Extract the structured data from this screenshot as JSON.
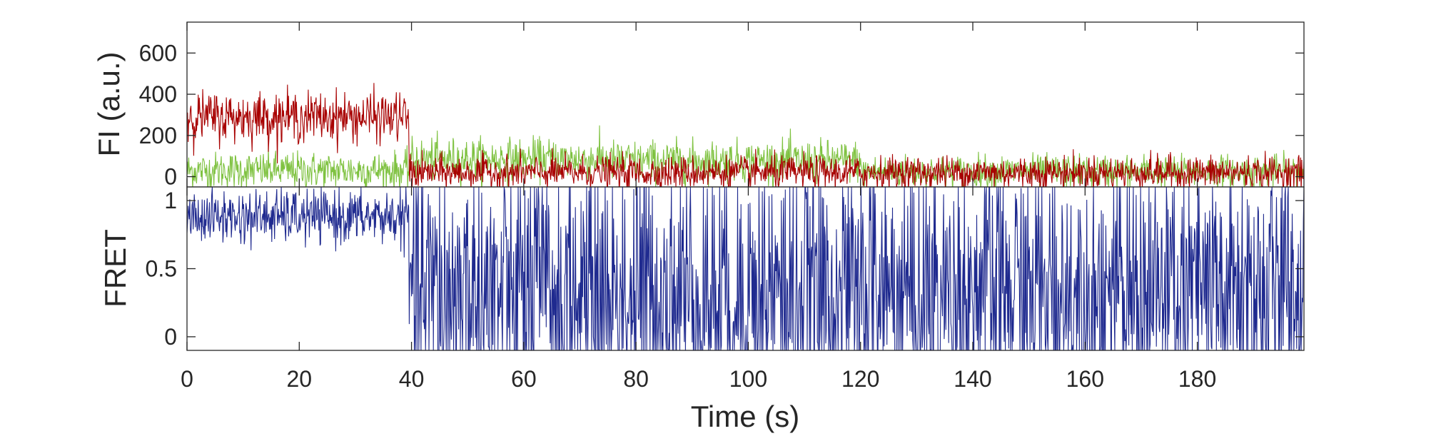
{
  "chart_data": [
    {
      "type": "line",
      "panel": "top",
      "title": "",
      "xlabel": "",
      "ylabel": "FI (a.u.)",
      "xlim": [
        0,
        199
      ],
      "ylim": [
        -50,
        750
      ],
      "yticks": [
        0,
        200,
        400,
        600
      ],
      "ytick_labels": [
        "0",
        "200",
        "400",
        "600"
      ],
      "grid": false,
      "colors": {
        "donor": "#7fc241",
        "acceptor": "#a80000"
      },
      "sample_interval_s": 0.1,
      "series": [
        {
          "role": "donor",
          "color": "#7fc241",
          "segments": [
            {
              "x_start": 0,
              "x_end": 39.6,
              "mean": 30,
              "noise_sd": 45
            },
            {
              "x_start": 39.6,
              "x_end": 75,
              "mean": 85,
              "noise_sd": 50
            },
            {
              "x_start": 75,
              "x_end": 120,
              "mean": 75,
              "noise_sd": 50
            },
            {
              "x_start": 120,
              "x_end": 199,
              "mean": 25,
              "noise_sd": 40
            }
          ]
        },
        {
          "role": "acceptor",
          "color": "#a80000",
          "segments": [
            {
              "x_start": 0,
              "x_end": 39.6,
              "mean": 290,
              "noise_sd": 60
            },
            {
              "x_start": 39.6,
              "x_end": 199,
              "mean": 20,
              "noise_sd": 40
            }
          ]
        }
      ]
    },
    {
      "type": "line",
      "panel": "bottom",
      "title": "",
      "xlabel": "Time (s)",
      "ylabel": "FRET",
      "xlim": [
        0,
        199
      ],
      "ylim": [
        -0.1,
        1.1
      ],
      "yticks": [
        0,
        0.5,
        1
      ],
      "ytick_labels": [
        "0",
        "0.5",
        "1"
      ],
      "xticks": [
        0,
        20,
        40,
        60,
        80,
        100,
        120,
        140,
        160,
        180
      ],
      "xtick_labels": [
        "0",
        "20",
        "40",
        "60",
        "80",
        "100",
        "120",
        "140",
        "160",
        "180"
      ],
      "grid": false,
      "colors": {
        "fret": "#1f2a8f"
      },
      "sample_interval_s": 0.1,
      "series": [
        {
          "role": "fret",
          "color": "#1f2a8f",
          "segments": [
            {
              "x_start": 0,
              "x_end": 39.6,
              "mean": 0.88,
              "noise_sd": 0.1,
              "clip": [
                0.55,
                1.1
              ]
            },
            {
              "x_start": 39.6,
              "x_end": 199,
              "mean": 0.3,
              "noise_sd": 0.55,
              "clip": [
                -0.1,
                1.1
              ]
            }
          ]
        }
      ]
    }
  ]
}
